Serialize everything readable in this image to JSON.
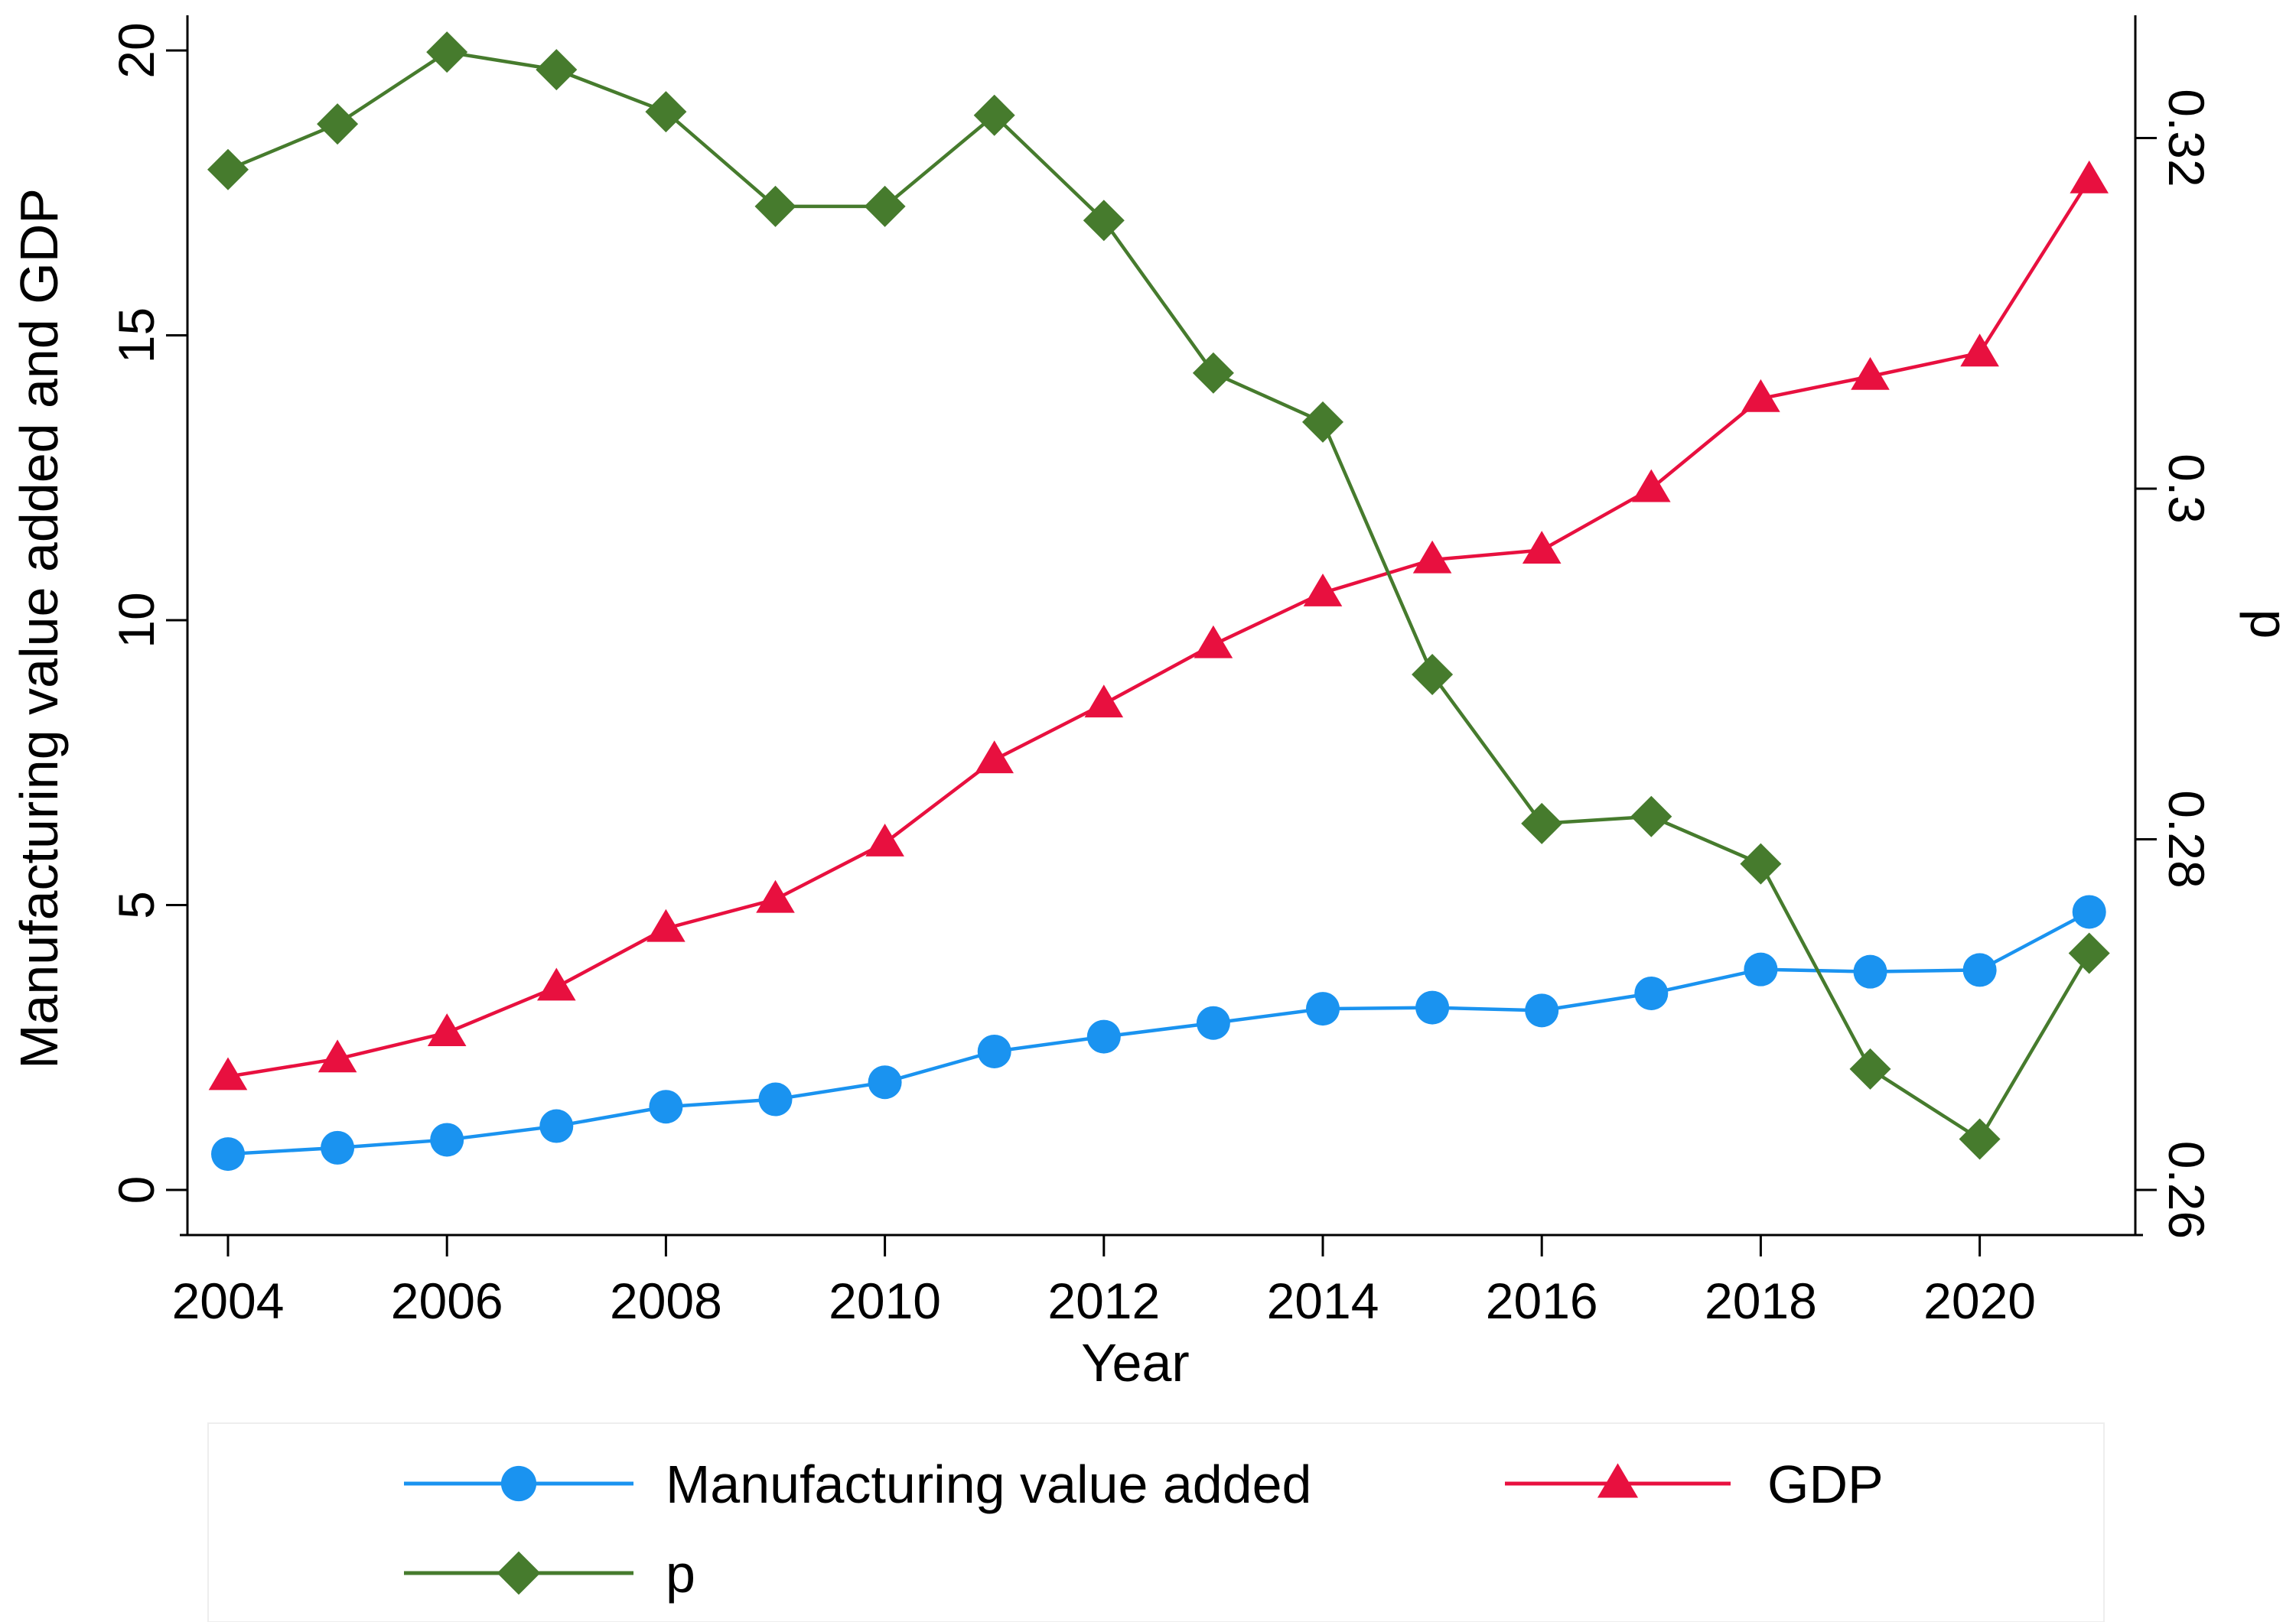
{
  "chart_data": {
    "type": "line",
    "title": "",
    "xlabel": "Year",
    "ylabel_left": "Manufacturing value added and GDP",
    "ylabel_right": "p",
    "x": [
      2004,
      2005,
      2006,
      2007,
      2008,
      2009,
      2010,
      2011,
      2012,
      2013,
      2014,
      2015,
      2016,
      2017,
      2018,
      2019,
      2020,
      2021
    ],
    "x_ticks": [
      2004,
      2006,
      2008,
      2010,
      2012,
      2014,
      2016,
      2018,
      2020
    ],
    "y_left_ticks": [
      0,
      5,
      10,
      15,
      20
    ],
    "y_left_range": [
      0,
      20
    ],
    "y_right_ticks": [
      0.26,
      0.28,
      0.3,
      0.32
    ],
    "y_right_range": [
      0.26,
      0.3249
    ],
    "grid": false,
    "legend_position": "bottom",
    "series": [
      {
        "name": "Manufacturing value added",
        "axis": "left",
        "color": "#1a93f0",
        "marker": "circle",
        "values": [
          0.63,
          0.74,
          0.88,
          1.12,
          1.46,
          1.59,
          1.89,
          2.43,
          2.69,
          2.93,
          3.18,
          3.2,
          3.15,
          3.45,
          3.87,
          3.83,
          3.86,
          4.88
        ]
      },
      {
        "name": "GDP",
        "axis": "left",
        "color": "#e8103f",
        "marker": "triangle",
        "values": [
          1.99,
          2.3,
          2.76,
          3.56,
          4.59,
          5.1,
          6.09,
          7.55,
          8.53,
          9.57,
          10.48,
          11.06,
          11.23,
          12.31,
          13.89,
          14.28,
          14.69,
          17.73
        ]
      },
      {
        "name": "p",
        "axis": "right",
        "color": "#467b2d",
        "marker": "diamond",
        "values": [
          0.3182,
          0.3208,
          0.3249,
          0.3239,
          0.3215,
          0.3161,
          0.3161,
          0.3213,
          0.3153,
          0.3066,
          0.3038,
          0.2894,
          0.2809,
          0.2813,
          0.2786,
          0.2669,
          0.2629,
          0.2735
        ]
      }
    ]
  }
}
